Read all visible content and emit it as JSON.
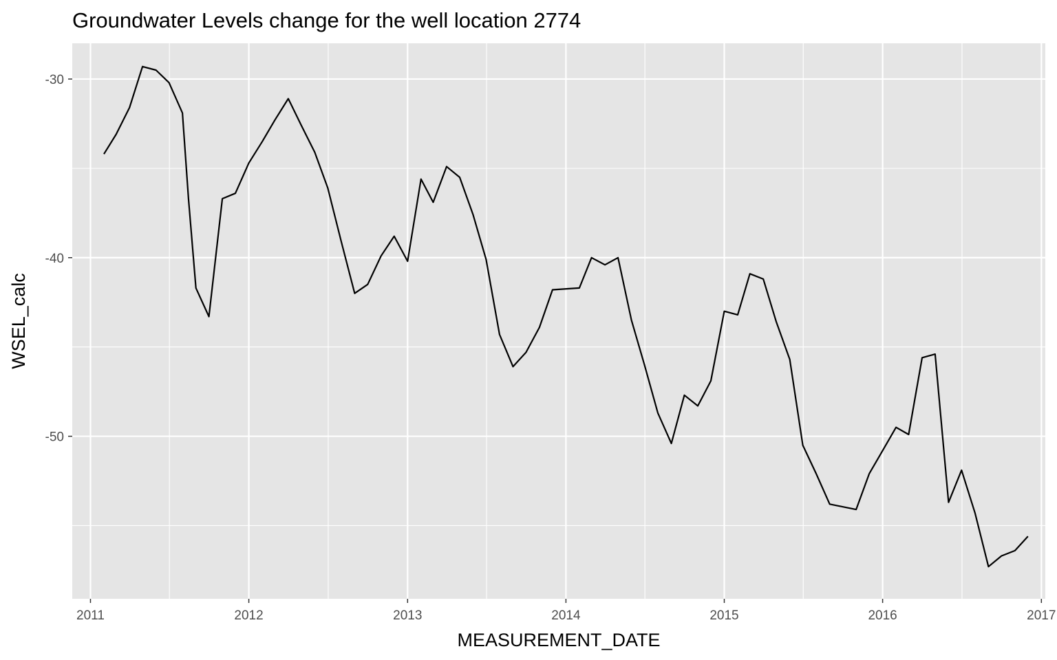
{
  "chart_data": {
    "type": "line",
    "title": "Groundwater Levels change for the well location 2774",
    "xlabel": "MEASUREMENT_DATE",
    "ylabel": "WSEL_calc",
    "x_ticks": [
      "2011",
      "2012",
      "2013",
      "2014",
      "2015",
      "2016",
      "2017"
    ],
    "y_ticks": [
      -30,
      -40,
      -50
    ],
    "xlim": [
      "2010-11-20",
      "2017-01-10"
    ],
    "ylim": [
      -59.1,
      -28.0
    ],
    "grid": true,
    "legend": "none",
    "colors": {
      "panel": "#e5e5e5",
      "grid": "#ffffff",
      "line": "#000000",
      "tick": "#333333"
    },
    "series": [
      {
        "x": [
          "2011-02-01",
          "2011-03-01",
          "2011-04-01",
          "2011-05-01",
          "2011-06-01",
          "2011-07-01",
          "2011-08-01",
          "2011-08-15",
          "2011-09-01",
          "2011-10-01",
          "2011-11-01",
          "2011-12-01",
          "2012-01-01",
          "2012-02-01",
          "2012-03-01",
          "2012-04-01",
          "2012-05-01",
          "2012-06-01",
          "2012-07-01",
          "2012-08-01",
          "2012-09-01",
          "2012-10-01",
          "2012-11-01",
          "2012-12-01",
          "2013-01-01",
          "2013-02-01",
          "2013-03-01",
          "2013-04-01",
          "2013-05-01",
          "2013-06-01",
          "2013-07-01",
          "2013-08-01",
          "2013-09-01",
          "2013-10-01",
          "2013-11-01",
          "2013-12-01",
          "2014-02-01",
          "2014-03-01",
          "2014-04-01",
          "2014-05-01",
          "2014-06-01",
          "2014-07-01",
          "2014-08-01",
          "2014-09-01",
          "2014-10-01",
          "2014-11-01",
          "2014-12-01",
          "2015-01-01",
          "2015-02-01",
          "2015-03-01",
          "2015-04-01",
          "2015-05-01",
          "2015-06-01",
          "2015-07-01",
          "2015-08-01",
          "2015-09-01",
          "2015-11-01",
          "2015-12-01",
          "2016-01-01",
          "2016-02-01",
          "2016-03-01",
          "2016-04-01",
          "2016-05-01",
          "2016-06-01",
          "2016-07-01",
          "2016-08-01",
          "2016-09-01",
          "2016-10-01",
          "2016-11-01",
          "2016-12-01"
        ],
        "y": [
          -34.2,
          -33.1,
          -31.6,
          -29.3,
          -29.5,
          -30.2,
          -31.9,
          -36.7,
          -41.7,
          -43.3,
          -36.7,
          -36.4,
          -34.7,
          -33.5,
          -32.3,
          -31.1,
          -32.6,
          -34.1,
          -36.1,
          -39.1,
          -42.0,
          -41.5,
          -39.9,
          -38.8,
          -40.2,
          -35.6,
          -36.9,
          -34.9,
          -35.5,
          -37.6,
          -40.1,
          -44.3,
          -46.1,
          -45.3,
          -43.9,
          -41.8,
          -41.7,
          -40.0,
          -40.4,
          -40.0,
          -43.5,
          -46.0,
          -48.7,
          -50.4,
          -47.7,
          -48.3,
          -46.9,
          -43.0,
          -43.2,
          -40.9,
          -41.2,
          -43.6,
          -45.7,
          -50.5,
          -52.1,
          -53.8,
          -54.1,
          -52.1,
          -50.8,
          -49.5,
          -49.9,
          -45.6,
          -45.4,
          -53.7,
          -51.9,
          -54.3,
          -57.3,
          -56.7,
          -56.4,
          -55.6
        ]
      }
    ]
  }
}
